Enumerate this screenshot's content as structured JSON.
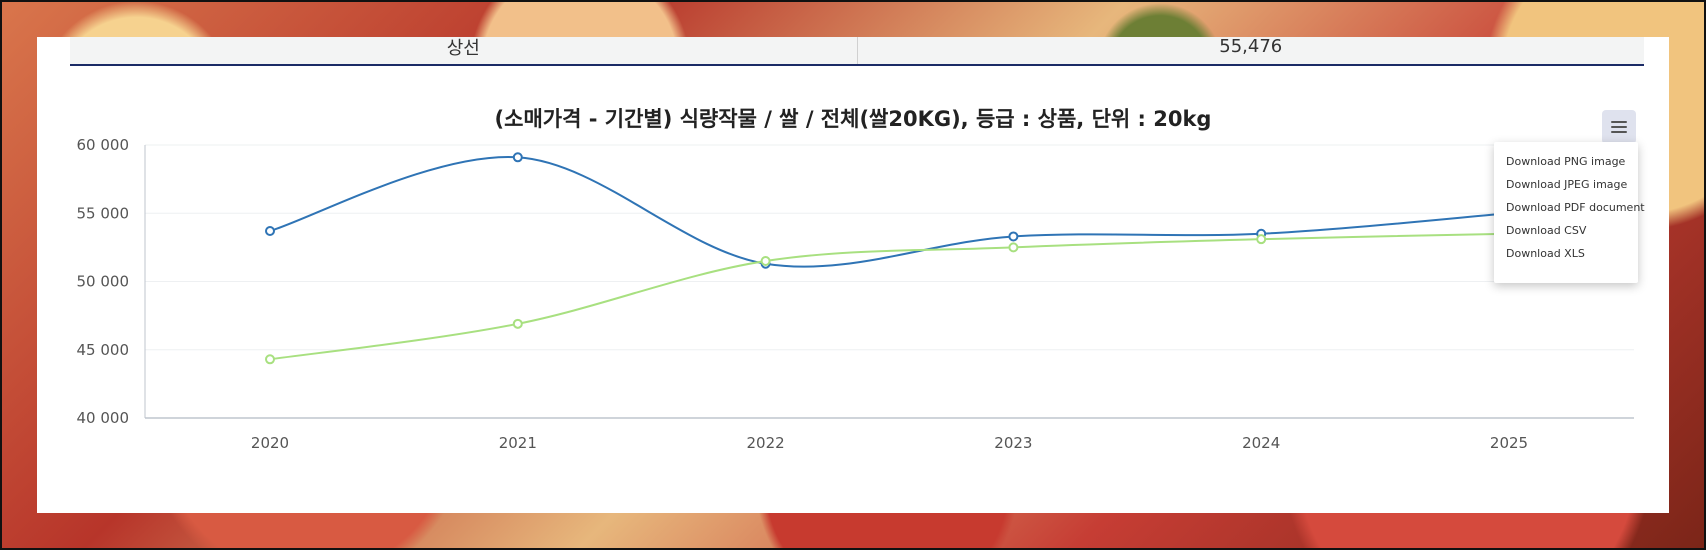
{
  "summary": {
    "left_label": "상선",
    "right_label": "55,476"
  },
  "menu": {
    "items": [
      "Download PNG image",
      "Download JPEG image",
      "Download PDF document",
      "Download CSV",
      "Download XLS"
    ]
  },
  "chart_data": {
    "type": "line",
    "title": "(소매가격 - 기간별) 식량작물 / 쌀 / 전체(쌀20KG), 등급 : 상품, 단위 : 20kg",
    "categories": [
      "2020",
      "2021",
      "2022",
      "2023",
      "2024",
      "2025"
    ],
    "y_tick_labels": [
      "60 000",
      "55 000",
      "50 000",
      "45 000",
      "40 000"
    ],
    "y_ticks": [
      60000,
      55000,
      50000,
      45000,
      40000
    ],
    "ylim": [
      40000,
      60000
    ],
    "grid": true,
    "series": [
      {
        "color": "#2f74b5",
        "values": [
          53700,
          59100,
          51300,
          53300,
          53500,
          55000
        ]
      },
      {
        "color": "#a8e080",
        "values": [
          44300,
          46900,
          51500,
          52500,
          53100,
          53500
        ]
      }
    ]
  }
}
